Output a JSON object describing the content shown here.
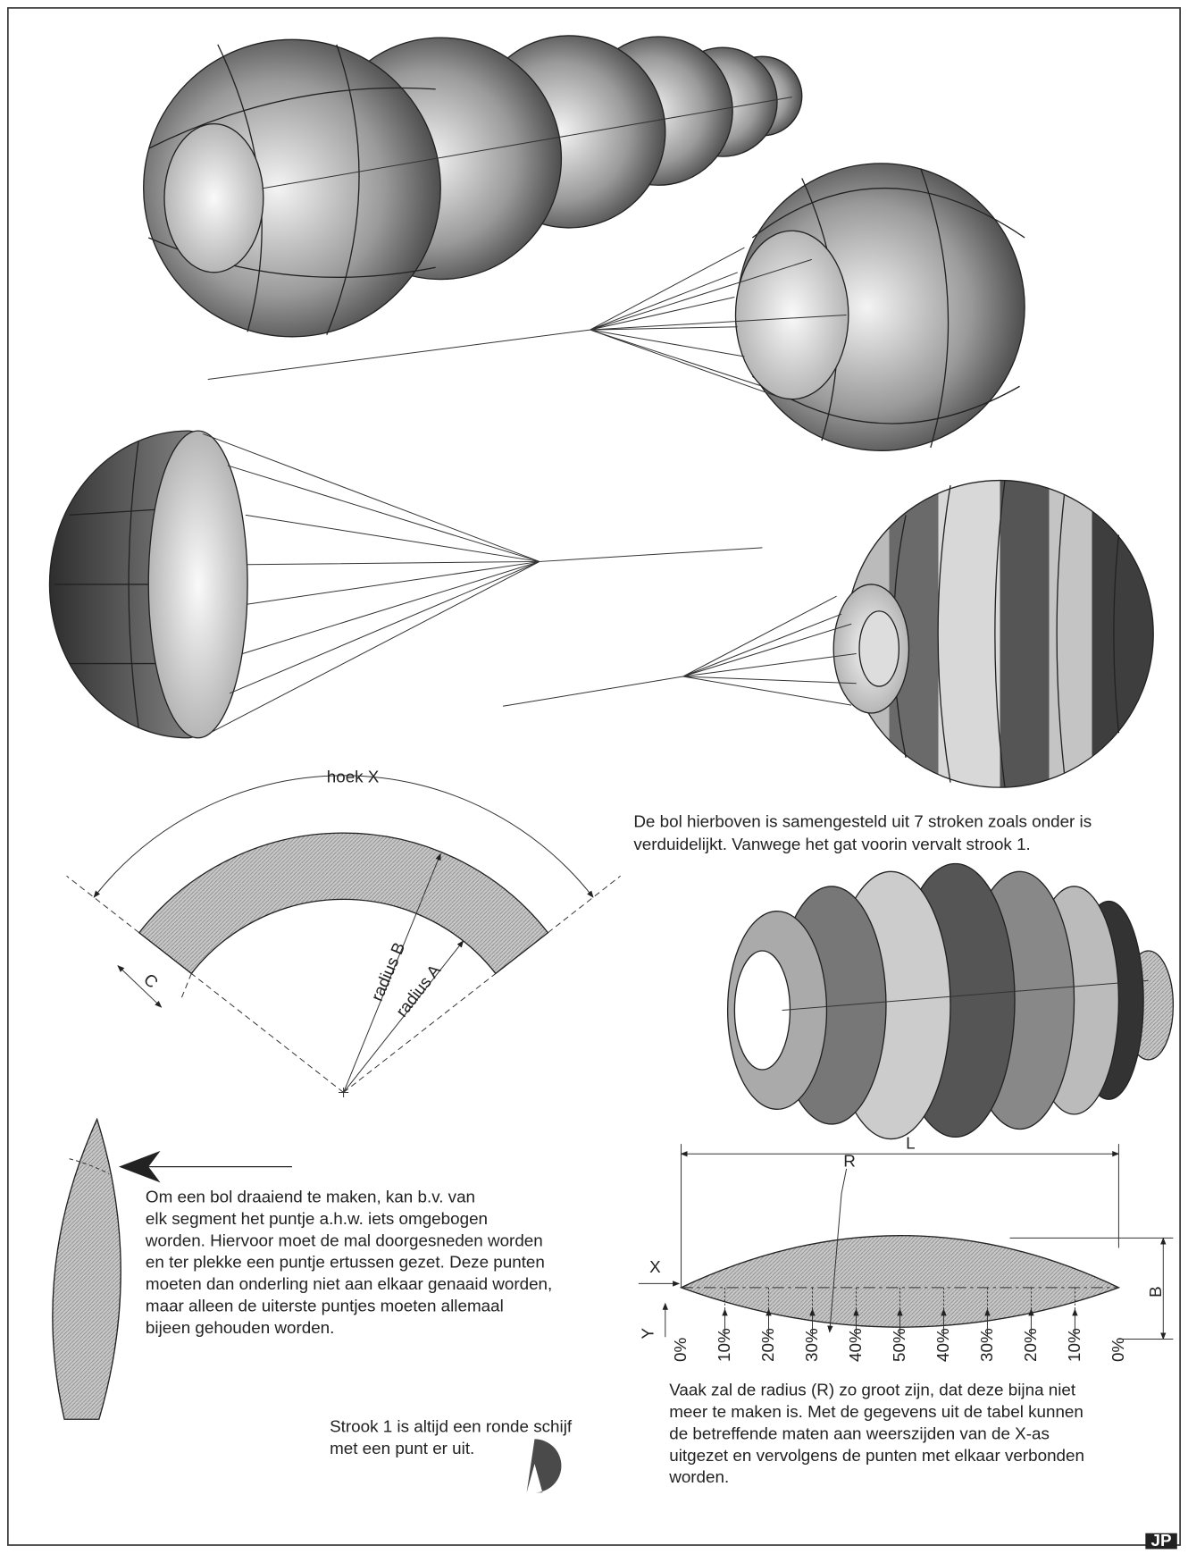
{
  "arc_diagram": {
    "angle_label": "hoek X",
    "radius_b": "radius B",
    "radius_a": "radius A",
    "width_label": "C"
  },
  "sphere_note": {
    "lines": [
      "De bol hierboven is samengesteld uit 7 stroken zoals onder is",
      "verduidelijkt.  Vanwege het gat voorin vervalt strook 1."
    ]
  },
  "spin_note": {
    "lines": [
      "Om een bol draaiend te maken, kan b.v. van",
      "elk segment het puntje a.h.w. iets omgebogen",
      "worden. Hiervoor moet de mal doorgesneden worden",
      "en ter plekke een puntje ertussen gezet. Deze punten",
      "moeten dan onderling niet aan elkaar genaaid worden,",
      "maar alleen de uiterste puntjes moeten allemaal",
      "bijeen gehouden worden."
    ]
  },
  "strip_note": {
    "lines": [
      "Strook 1 is altijd een ronde schijf",
      "met een punt er uit."
    ]
  },
  "lens_diagram": {
    "length_label": "L",
    "radius_label": "R",
    "x_axis": "X",
    "y_axis": "Y",
    "height_label": "B",
    "stations": [
      "0%",
      "10%",
      "20%",
      "30%",
      "40%",
      "50%",
      "40%",
      "30%",
      "20%",
      "10%",
      "0%"
    ]
  },
  "lens_note": {
    "lines": [
      "Vaak zal de radius (R) zo groot zijn, dat deze bijna niet",
      "meer te maken is. Met de gegevens uit de tabel kunnen",
      "de betreffende maten aan weerszijden van de X-as",
      "uitgezet en vervolgens de punten met elkaar verbonden",
      "worden."
    ]
  },
  "footer": {
    "initials": "JP"
  }
}
